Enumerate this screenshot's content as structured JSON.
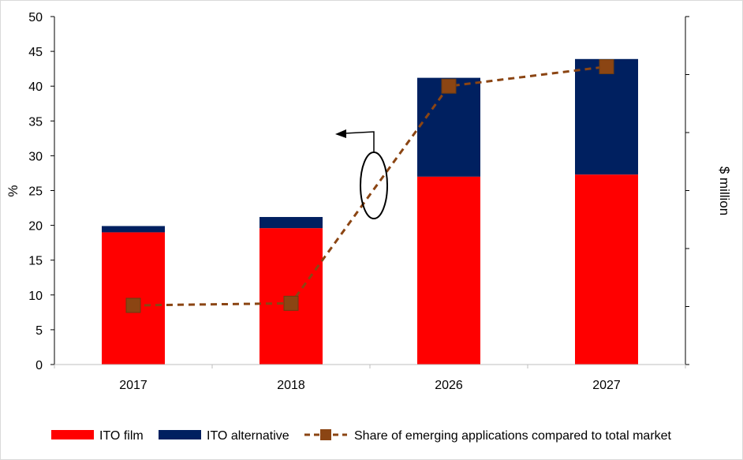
{
  "chart_data": {
    "type": "bar",
    "stacked": true,
    "categories": [
      "2017",
      "2018",
      "2026",
      "2027"
    ],
    "series": [
      {
        "name": "ITO film",
        "kind": "bar",
        "axis": "right",
        "color": "#ff0000",
        "values": [
          19.0,
          19.6,
          27.0,
          27.3
        ]
      },
      {
        "name": "ITO alternative",
        "kind": "bar",
        "axis": "right",
        "color": "#002060",
        "values": [
          0.9,
          1.6,
          14.2,
          16.6
        ]
      },
      {
        "name": "Share of emerging applications compared to total market",
        "kind": "line",
        "axis": "left",
        "style": "dashed",
        "marker": "square",
        "color": "#8b4513",
        "values": [
          8.5,
          8.8,
          40.0,
          42.8
        ]
      }
    ],
    "ylabel": "%",
    "y2label": "$ million",
    "ylim": [
      0,
      50
    ],
    "yticks": [
      "0",
      "5",
      "10",
      "15",
      "20",
      "25",
      "30",
      "35",
      "40",
      "45",
      "50"
    ],
    "y2_tick_count": 7,
    "y2_tick_labels_shown": false,
    "grid": false,
    "legend_position": "bottom",
    "annotation": "ellipse around line with arrow pointing to left axis"
  }
}
